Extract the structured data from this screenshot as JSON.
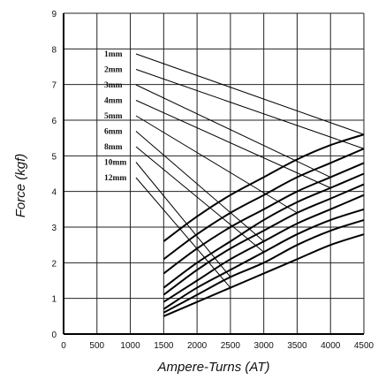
{
  "chart_data": {
    "type": "line",
    "xlabel": "Ampere-Turns (AT)",
    "ylabel": "Force (kgf)",
    "xlim": [
      0,
      4500
    ],
    "ylim": [
      0,
      9
    ],
    "x_ticks": [
      "0",
      "500",
      "1000",
      "1500",
      "2000",
      "2500",
      "3000",
      "3500",
      "4000",
      "4500"
    ],
    "y_ticks": [
      "0",
      "1",
      "2",
      "3",
      "4",
      "5",
      "6",
      "7",
      "8",
      "9"
    ],
    "grid": true,
    "series": [
      {
        "name": "1mm",
        "x": [
          1500,
          2000,
          2500,
          3000,
          3500,
          4000,
          4500
        ],
        "y": [
          2.6,
          3.3,
          3.9,
          4.4,
          4.9,
          5.3,
          5.6
        ]
      },
      {
        "name": "2mm",
        "x": [
          1500,
          2000,
          2500,
          3000,
          3500,
          4000,
          4500
        ],
        "y": [
          2.1,
          2.8,
          3.4,
          3.9,
          4.4,
          4.8,
          5.2
        ]
      },
      {
        "name": "3mm",
        "x": [
          1500,
          2000,
          2500,
          3000,
          3500,
          4000,
          4500
        ],
        "y": [
          1.7,
          2.4,
          3.0,
          3.5,
          4.0,
          4.4,
          4.8
        ]
      },
      {
        "name": "4mm",
        "x": [
          1500,
          2000,
          2500,
          3000,
          3500,
          4000,
          4500
        ],
        "y": [
          1.3,
          2.0,
          2.6,
          3.2,
          3.7,
          4.1,
          4.5
        ]
      },
      {
        "name": "5mm",
        "x": [
          1500,
          2000,
          2500,
          3000,
          3500,
          4000,
          4500
        ],
        "y": [
          1.1,
          1.8,
          2.4,
          2.9,
          3.4,
          3.8,
          4.2
        ]
      },
      {
        "name": "6mm",
        "x": [
          1500,
          2000,
          2500,
          3000,
          3500,
          4000,
          4500
        ],
        "y": [
          0.9,
          1.5,
          2.1,
          2.6,
          3.1,
          3.5,
          3.9
        ]
      },
      {
        "name": "8mm",
        "x": [
          1500,
          2000,
          2500,
          3000,
          3500,
          4000,
          4500
        ],
        "y": [
          0.7,
          1.3,
          1.8,
          2.3,
          2.8,
          3.2,
          3.5
        ]
      },
      {
        "name": "10mm",
        "x": [
          1500,
          2000,
          2500,
          3000,
          3500,
          4000,
          4500
        ],
        "y": [
          0.6,
          1.1,
          1.6,
          2.0,
          2.5,
          2.9,
          3.2
        ]
      },
      {
        "name": "12mm",
        "x": [
          1500,
          2000,
          2500,
          3000,
          3500,
          4000,
          4500
        ],
        "y": [
          0.5,
          0.9,
          1.3,
          1.7,
          2.1,
          2.5,
          2.8
        ]
      }
    ]
  }
}
